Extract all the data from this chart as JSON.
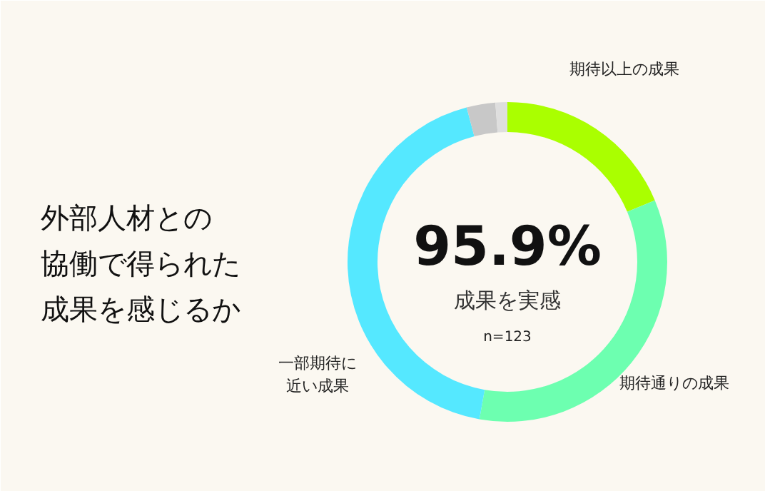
{
  "chart_data": {
    "type": "donut",
    "title": "外部人材との協働で得られた成果を感じるか",
    "categories": [
      "期待以上の成果",
      "期待通りの成果",
      "一部期待に近い成果",
      null,
      null
    ],
    "values": [
      18.7,
      34.1,
      43.1,
      2.9,
      1.2
    ],
    "colors": [
      "#aaff00",
      "#6dffb0",
      "#55e8ff",
      "#c8c8c8",
      "#dedede"
    ],
    "annotations": [
      "95.9%",
      "成果を実感",
      "n=123"
    ]
  }
}
